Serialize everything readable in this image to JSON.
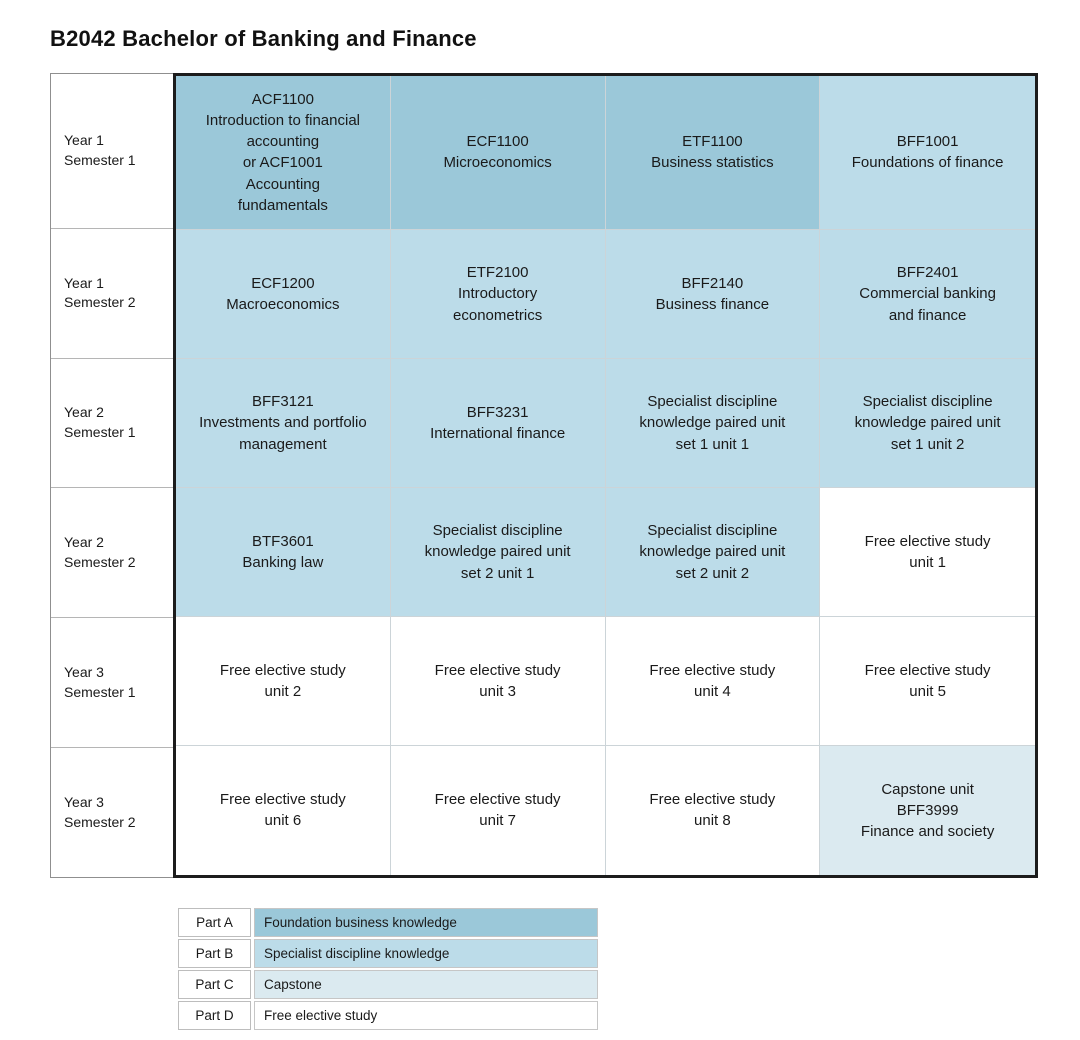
{
  "page": {
    "title": "B2042 Bachelor of Banking and Finance"
  },
  "colors": {
    "part_a": "#9bc8d9",
    "part_b": "#bcdce9",
    "part_c": "#dbeaf0",
    "part_d": "#ffffff"
  },
  "table": {
    "rows": [
      {
        "label": [
          "Year 1",
          "Semester 1"
        ],
        "cells": [
          {
            "lines": [
              "ACF1100",
              "Introduction to financial",
              "accounting",
              "or ACF1001",
              "Accounting",
              "fundamentals"
            ],
            "part": "A"
          },
          {
            "lines": [
              "ECF1100",
              "Microeconomics"
            ],
            "part": "A"
          },
          {
            "lines": [
              "ETF1100",
              "Business statistics"
            ],
            "part": "A"
          },
          {
            "lines": [
              "BFF1001",
              "Foundations of finance"
            ],
            "part": "B"
          }
        ]
      },
      {
        "label": [
          "Year 1",
          "Semester 2"
        ],
        "cells": [
          {
            "lines": [
              "ECF1200",
              "Macroeconomics"
            ],
            "part": "B"
          },
          {
            "lines": [
              "ETF2100",
              "Introductory",
              "econometrics"
            ],
            "part": "B"
          },
          {
            "lines": [
              "BFF2140",
              "Business finance"
            ],
            "part": "B"
          },
          {
            "lines": [
              "BFF2401",
              "Commercial banking",
              "and finance"
            ],
            "part": "B"
          }
        ]
      },
      {
        "label": [
          "Year 2",
          "Semester 1"
        ],
        "cells": [
          {
            "lines": [
              "BFF3121",
              "Investments and portfolio",
              "management"
            ],
            "part": "B"
          },
          {
            "lines": [
              "BFF3231",
              "International finance"
            ],
            "part": "B"
          },
          {
            "lines": [
              "Specialist discipline",
              "knowledge paired unit",
              "set 1 unit 1"
            ],
            "part": "B"
          },
          {
            "lines": [
              "Specialist discipline",
              "knowledge paired unit",
              "set 1 unit 2"
            ],
            "part": "B"
          }
        ]
      },
      {
        "label": [
          "Year 2",
          "Semester 2"
        ],
        "cells": [
          {
            "lines": [
              "BTF3601",
              "Banking law"
            ],
            "part": "B"
          },
          {
            "lines": [
              "Specialist discipline",
              "knowledge paired unit",
              "set 2 unit 1"
            ],
            "part": "B"
          },
          {
            "lines": [
              "Specialist discipline",
              "knowledge paired unit",
              "set 2 unit 2"
            ],
            "part": "B"
          },
          {
            "lines": [
              "Free elective study",
              "unit 1"
            ],
            "part": "D"
          }
        ]
      },
      {
        "label": [
          "Year 3",
          "Semester 1"
        ],
        "cells": [
          {
            "lines": [
              "Free elective study",
              "unit 2"
            ],
            "part": "D"
          },
          {
            "lines": [
              "Free elective study",
              "unit 3"
            ],
            "part": "D"
          },
          {
            "lines": [
              "Free elective study",
              "unit 4"
            ],
            "part": "D"
          },
          {
            "lines": [
              "Free elective study",
              "unit 5"
            ],
            "part": "D"
          }
        ]
      },
      {
        "label": [
          "Year 3",
          "Semester 2"
        ],
        "cells": [
          {
            "lines": [
              "Free elective study",
              "unit 6"
            ],
            "part": "D"
          },
          {
            "lines": [
              "Free elective study",
              "unit 7"
            ],
            "part": "D"
          },
          {
            "lines": [
              "Free elective study",
              "unit 8"
            ],
            "part": "D"
          },
          {
            "lines": [
              "Capstone unit",
              "BFF3999",
              "Finance and society"
            ],
            "part": "C"
          }
        ]
      }
    ]
  },
  "legend": {
    "rows": [
      {
        "label": "Part A",
        "description": "Foundation business knowledge",
        "part": "A"
      },
      {
        "label": "Part B",
        "description": "Specialist discipline knowledge",
        "part": "B"
      },
      {
        "label": "Part C",
        "description": "Capstone",
        "part": "C"
      },
      {
        "label": "Part D",
        "description": "Free elective study",
        "part": "D"
      }
    ]
  }
}
